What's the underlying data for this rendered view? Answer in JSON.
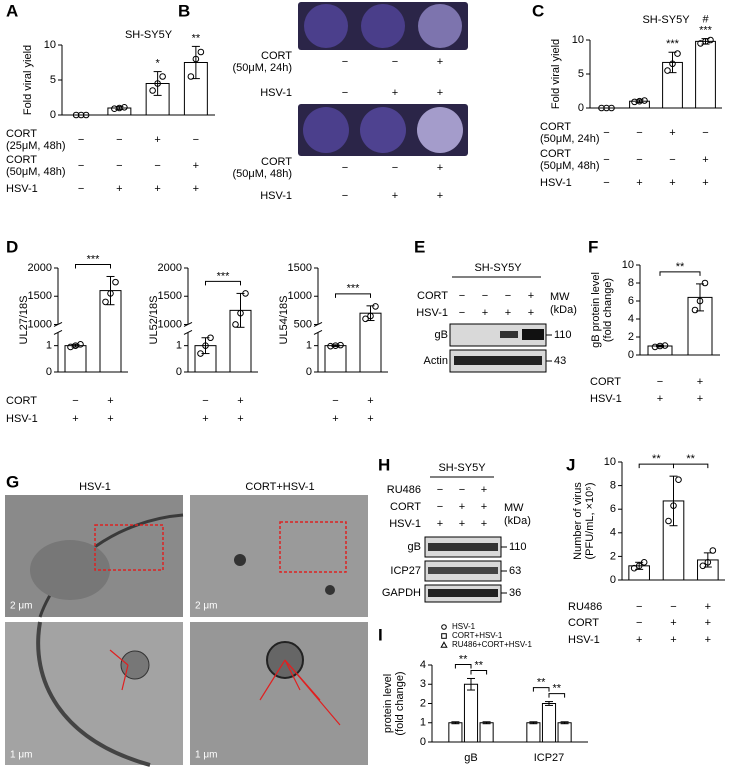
{
  "panel_letters": [
    "A",
    "B",
    "C",
    "D",
    "E",
    "F",
    "G",
    "H",
    "I",
    "J"
  ],
  "chart_data": [
    {
      "type": "bar",
      "title": "SH-SY5Y",
      "y_label": [
        "Fold viral yield"
      ],
      "color": "#ffffff",
      "values": [
        0,
        1,
        4.5,
        7.5
      ],
      "errors": [
        0,
        0.2,
        1.7,
        2.3
      ],
      "points": [
        [
          0,
          0,
          0
        ],
        [
          0.9,
          1,
          1.1
        ],
        [
          3.5,
          4.5,
          5.5
        ],
        [
          5.5,
          8,
          9
        ]
      ],
      "ylim": [
        0,
        10
      ],
      "yticks": [
        0,
        5,
        10
      ],
      "stars": [
        {
          "index": 2,
          "text": "*"
        },
        {
          "index": 3,
          "text": "**"
        }
      ],
      "conditions": [
        {
          "label": [
            "CORT",
            "(25μM, 48h)"
          ],
          "signs": [
            "−",
            "−",
            "+",
            "−"
          ]
        },
        {
          "label": [
            "CORT",
            "(50μM, 48h)"
          ],
          "signs": [
            "−",
            "−",
            "−",
            "+"
          ]
        },
        {
          "label": [
            "HSV-1"
          ],
          "signs": [
            "−",
            "+",
            "+",
            "+"
          ]
        }
      ]
    },
    {
      "type": "bar",
      "title": "SH-SY5Y",
      "y_label": [
        "Fold viral yield"
      ],
      "color": "#ffffff",
      "values": [
        0,
        1,
        6.7,
        9.8
      ],
      "errors": [
        0,
        0.2,
        1.5,
        0.4
      ],
      "points": [
        [
          0,
          0,
          0
        ],
        [
          0.9,
          1,
          1.1
        ],
        [
          5.5,
          6.5,
          8
        ],
        [
          9.5,
          9.8,
          10
        ]
      ],
      "ylim": [
        0,
        10
      ],
      "yticks": [
        0,
        5,
        10
      ],
      "stars": [
        {
          "index": 2,
          "text": "***"
        },
        {
          "index": 3,
          "text": "***"
        },
        {
          "index": 3,
          "text": "#"
        }
      ],
      "conditions": [
        {
          "label": [
            "CORT",
            "(50μM, 24h)"
          ],
          "signs": [
            "−",
            "−",
            "+",
            "−"
          ]
        },
        {
          "label": [
            "CORT",
            "(50μM, 48h)"
          ],
          "signs": [
            "−",
            "−",
            "−",
            "+"
          ]
        },
        {
          "label": [
            "HSV-1"
          ],
          "signs": [
            "−",
            "+",
            "+",
            "+"
          ]
        }
      ]
    },
    {
      "type": "bar",
      "y_label": [
        "UL27/18S"
      ],
      "color": "#ffffff",
      "values": [
        1,
        1600
      ],
      "errors": [
        0.05,
        250
      ],
      "points": [
        [
          0.95,
          1,
          1.05
        ],
        [
          1400,
          1550,
          1750
        ]
      ],
      "ylim": [
        0,
        2000
      ],
      "ybreak": [
        1.5,
        1000
      ],
      "yticks": [
        0,
        1,
        1000,
        1500,
        2000
      ],
      "brackets": [
        {
          "from": 0,
          "to": 1,
          "text": "***"
        }
      ],
      "conditions": [
        {
          "label": [
            "CORT"
          ],
          "signs": [
            "−",
            "+"
          ]
        },
        {
          "label": [
            "HSV-1"
          ],
          "signs": [
            "+",
            "+"
          ]
        }
      ]
    },
    {
      "type": "bar",
      "y_label": [
        "UL52/18S"
      ],
      "color": "#ffffff",
      "values": [
        1,
        1250
      ],
      "errors": [
        0.3,
        300
      ],
      "points": [
        [
          0.7,
          1,
          1.3
        ],
        [
          1000,
          1200,
          1550
        ]
      ],
      "ylim": [
        0,
        2000
      ],
      "ybreak": [
        1.5,
        1000
      ],
      "yticks": [
        0,
        1,
        1000,
        1500,
        2000
      ],
      "brackets": [
        {
          "from": 0,
          "to": 1,
          "text": "***"
        }
      ],
      "conditions": [
        {
          "signs": [
            "−",
            "+"
          ]
        },
        {
          "signs": [
            "+",
            "+"
          ]
        }
      ]
    },
    {
      "type": "bar",
      "y_label": [
        "UL54/18S"
      ],
      "color": "#ffffff",
      "values": [
        1,
        700
      ],
      "errors": [
        0.03,
        130
      ],
      "points": [
        [
          0.98,
          1,
          1.02
        ],
        [
          600,
          650,
          820
        ]
      ],
      "ylim": [
        0,
        1500
      ],
      "ybreak": [
        1.5,
        500
      ],
      "yticks": [
        0,
        1,
        500,
        1000,
        1500
      ],
      "brackets": [
        {
          "from": 0,
          "to": 1,
          "text": "***"
        }
      ],
      "conditions": [
        {
          "signs": [
            "−",
            "+"
          ]
        },
        {
          "signs": [
            "+",
            "+"
          ]
        }
      ]
    },
    {
      "type": "bar",
      "y_label": [
        "gB protein level",
        "(fold change)"
      ],
      "color": "#ffffff",
      "values": [
        1,
        6.4
      ],
      "errors": [
        0.1,
        1.5
      ],
      "points": [
        [
          0.9,
          1,
          1.05
        ],
        [
          5,
          6,
          8
        ]
      ],
      "ylim": [
        0,
        10
      ],
      "yticks": [
        0,
        2,
        4,
        6,
        8,
        10
      ],
      "brackets": [
        {
          "from": 0,
          "to": 1,
          "text": "**"
        }
      ],
      "conditions": [
        {
          "label": [
            "CORT"
          ],
          "signs": [
            "−",
            "+"
          ]
        },
        {
          "label": [
            "HSV-1"
          ],
          "signs": [
            "+",
            "+"
          ]
        }
      ]
    },
    {
      "type": "bar",
      "y_label": [
        "Number of virus",
        "(PFU/mL, ×10⁵)"
      ],
      "color": "#ffffff",
      "values": [
        1.2,
        6.7,
        1.7
      ],
      "errors": [
        0.3,
        2.1,
        0.6
      ],
      "points": [
        [
          1,
          1.2,
          1.5
        ],
        [
          5,
          6.3,
          8.5
        ],
        [
          1.2,
          1.5,
          2.5
        ]
      ],
      "ylim": [
        0,
        10
      ],
      "yticks": [
        0,
        2,
        4,
        6,
        8,
        10
      ],
      "brackets": [
        {
          "from": 0,
          "to": 1,
          "text": "**"
        },
        {
          "from": 1,
          "to": 2,
          "text": "**"
        }
      ],
      "conditions": [
        {
          "label": [
            "RU486"
          ],
          "signs": [
            "−",
            "−",
            "+"
          ]
        },
        {
          "label": [
            "CORT"
          ],
          "signs": [
            "−",
            "+",
            "+"
          ]
        },
        {
          "label": [
            "HSV-1"
          ],
          "signs": [
            "+",
            "+",
            "+"
          ]
        }
      ]
    },
    {
      "type": "grouped_bar",
      "y_label": [
        "protein level",
        "(fold change)"
      ],
      "categories": [
        "gB",
        "ICP27"
      ],
      "series": [
        {
          "name": "HSV-1",
          "color": "#ffffff",
          "marker": "circle",
          "values": [
            1,
            1
          ],
          "errors": [
            0.05,
            0.05
          ]
        },
        {
          "name": "CORT+HSV-1",
          "color": "#ffffff",
          "marker": "square",
          "values": [
            3,
            2
          ],
          "errors": [
            0.3,
            0.1
          ]
        },
        {
          "name": "RU486+CORT+HSV-1",
          "color": "#ffffff",
          "marker": "triangle",
          "values": [
            1,
            1
          ],
          "errors": [
            0.05,
            0.05
          ]
        }
      ],
      "ylim": [
        0,
        4
      ],
      "yticks": [
        0,
        1,
        2,
        3,
        4
      ],
      "brackets": [
        {
          "category": 0,
          "from": 0,
          "to": 1,
          "text": "**"
        },
        {
          "category": 0,
          "from": 1,
          "to": 2,
          "text": "**"
        },
        {
          "category": 1,
          "from": 0,
          "to": 1,
          "text": "**"
        },
        {
          "category": 1,
          "from": 1,
          "to": 2,
          "text": "**"
        }
      ]
    }
  ],
  "plates": [
    {
      "rows": [
        {
          "label": [
            "CORT",
            "(50μM, 24h)"
          ],
          "signs": [
            "−",
            "−",
            "+"
          ]
        },
        {
          "label": [
            "HSV-1"
          ],
          "signs": [
            "−",
            "+",
            "+"
          ]
        }
      ]
    },
    {
      "rows": [
        {
          "label": [
            "CORT",
            "(50μM, 48h)"
          ],
          "signs": [
            "−",
            "−",
            "+"
          ]
        },
        {
          "label": [
            "HSV-1"
          ],
          "signs": [
            "−",
            "+",
            "+"
          ]
        }
      ]
    }
  ],
  "blot_e": {
    "title": "SH-SY5Y",
    "mw": [
      "MW",
      "(kDa)"
    ],
    "rows": [
      {
        "label": "CORT",
        "signs": [
          "−",
          "−",
          "−",
          "+"
        ]
      },
      {
        "label": "HSV-1",
        "signs": [
          "−",
          "+",
          "+",
          "+"
        ]
      }
    ],
    "bands": [
      {
        "label": "gB",
        "kda": "110"
      },
      {
        "label": "Actin",
        "kda": "43"
      }
    ]
  },
  "blot_h": {
    "title": "SH-SY5Y",
    "mw": [
      "MW",
      "(kDa)"
    ],
    "rows": [
      {
        "label": "RU486",
        "signs": [
          "−",
          "−",
          "+"
        ]
      },
      {
        "label": "CORT",
        "signs": [
          "−",
          "+",
          "+"
        ]
      },
      {
        "label": "HSV-1",
        "signs": [
          "+",
          "+",
          "+"
        ]
      }
    ],
    "bands": [
      {
        "label": "gB",
        "kda": "110"
      },
      {
        "label": "ICP27",
        "kda": "63"
      },
      {
        "label": "GAPDH",
        "kda": "36"
      }
    ]
  },
  "micrographs": {
    "titles": [
      "HSV-1",
      "CORT+HSV-1"
    ],
    "scales": [
      "2 μm",
      "2 μm",
      "1 μm",
      "1 μm"
    ]
  }
}
